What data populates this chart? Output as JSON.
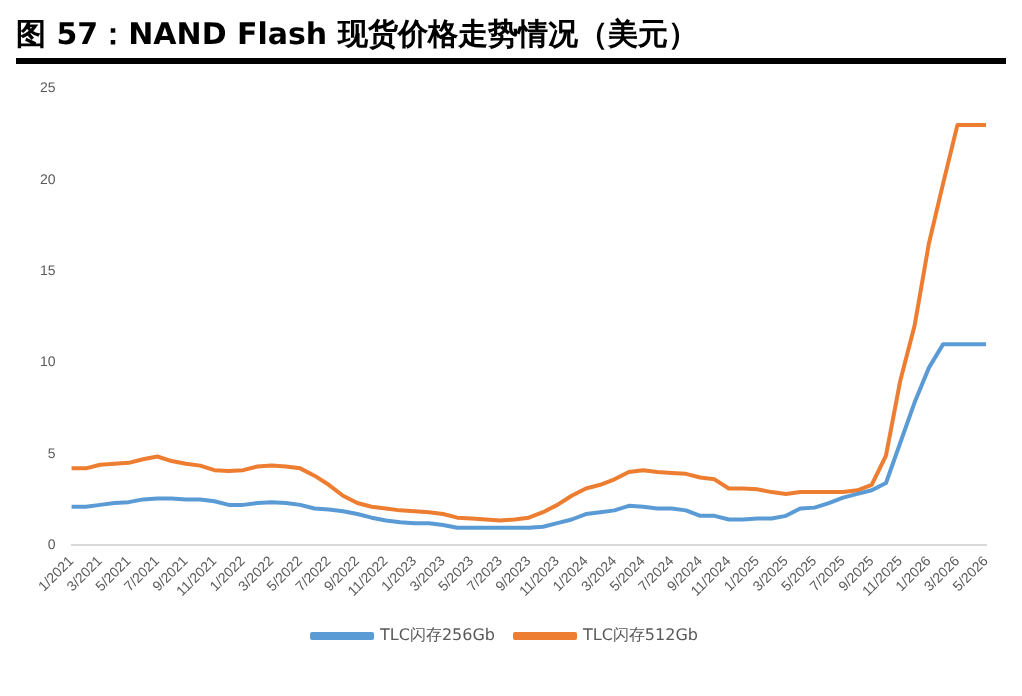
{
  "chart_data": {
    "type": "line",
    "title": "图 57：NAND Flash 现货价格走势情况（美元）",
    "categories": [
      "1/2021",
      null,
      "3/2021",
      null,
      "5/2021",
      null,
      "7/2021",
      null,
      "9/2021",
      null,
      "11/2021",
      null,
      "1/2022",
      null,
      "3/2022",
      null,
      "5/2022",
      null,
      "7/2022",
      null,
      "9/2022",
      null,
      "11/2022",
      null,
      "1/2023",
      null,
      "3/2023",
      null,
      "5/2023",
      null,
      "7/2023",
      null,
      "9/2023",
      null,
      "11/2023",
      null,
      "1/2024",
      null,
      "3/2024",
      null,
      "5/2024",
      null,
      "7/2024",
      null,
      "9/2024",
      null,
      "11/2024",
      null,
      "1/2025",
      null,
      "3/2025",
      null,
      "5/2025",
      null,
      "7/2025",
      null,
      "9/2025",
      null,
      "11/2025",
      null,
      "1/2026",
      null,
      "3/2026",
      null,
      "5/2026"
    ],
    "series": [
      {
        "name": "TLC闪存256Gb",
        "color": "#5b9bd5",
        "values": [
          2.1,
          2.1,
          2.2,
          2.3,
          2.35,
          2.5,
          2.55,
          2.55,
          2.5,
          2.5,
          2.4,
          2.2,
          2.2,
          2.3,
          2.35,
          2.3,
          2.2,
          2.0,
          1.95,
          1.85,
          1.7,
          1.5,
          1.35,
          1.25,
          1.2,
          1.2,
          1.1,
          0.95,
          0.95,
          0.95,
          0.95,
          0.95,
          0.95,
          1.0,
          1.2,
          1.4,
          1.7,
          1.8,
          1.9,
          2.15,
          2.1,
          2.0,
          2.0,
          1.9,
          1.6,
          1.6,
          1.4,
          1.4,
          1.45,
          1.45,
          1.6,
          2.0,
          2.05,
          2.3,
          2.6,
          2.8,
          3.0,
          3.4,
          5.6,
          7.8,
          9.7,
          11,
          11,
          11,
          11
        ]
      },
      {
        "name": "TLC闪存512Gb",
        "color": "#ed7d31",
        "values": [
          4.2,
          4.2,
          4.4,
          4.45,
          4.5,
          4.7,
          4.85,
          4.6,
          4.45,
          4.35,
          4.1,
          4.05,
          4.1,
          4.3,
          4.35,
          4.3,
          4.2,
          3.8,
          3.3,
          2.7,
          2.3,
          2.1,
          2.0,
          1.9,
          1.85,
          1.8,
          1.7,
          1.5,
          1.45,
          1.4,
          1.35,
          1.4,
          1.5,
          1.8,
          2.2,
          2.7,
          3.1,
          3.3,
          3.6,
          4.0,
          4.1,
          4.0,
          3.95,
          3.9,
          3.7,
          3.6,
          3.1,
          3.1,
          3.05,
          2.9,
          2.8,
          2.9,
          2.9,
          2.9,
          2.9,
          3.0,
          3.3,
          4.9,
          9,
          12,
          16.5,
          19.8,
          23,
          23,
          23
        ]
      }
    ],
    "ylim": [
      0,
      25
    ],
    "yticks": [
      0,
      5,
      10,
      15,
      20,
      25
    ],
    "grid": false,
    "legend": "bottom",
    "marker": "none",
    "line_style": "solid"
  }
}
